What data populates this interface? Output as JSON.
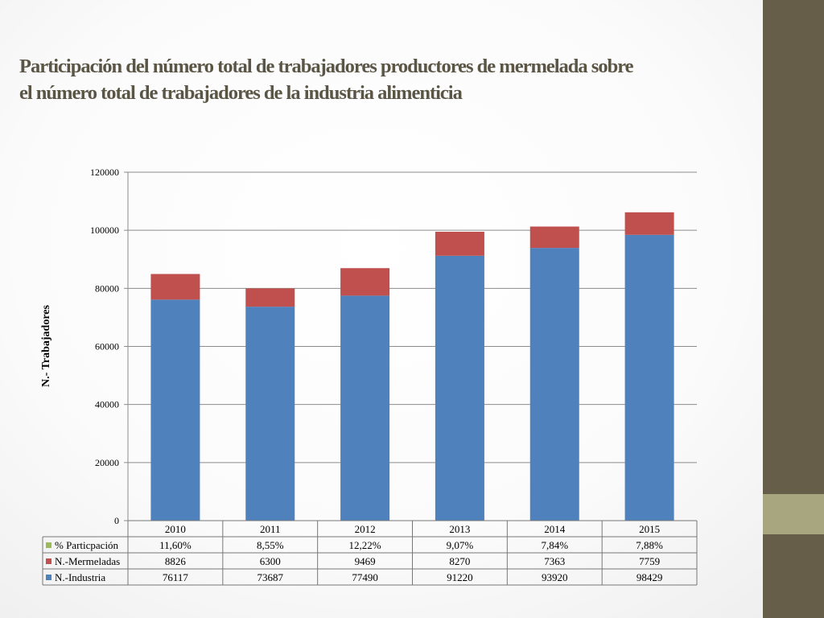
{
  "title_lines": [
    "Participación del número total de trabajadores productores de mermelada sobre",
    "el número total de trabajadores de la industria alimenticia"
  ],
  "chart_data": {
    "type": "bar",
    "stacked": true,
    "categories": [
      "2010",
      "2011",
      "2012",
      "2013",
      "2014",
      "2015"
    ],
    "series": [
      {
        "name": "% Particpación",
        "color": "#9bbb59",
        "values": [
          11.6,
          8.55,
          12.22,
          9.07,
          7.84,
          7.88
        ],
        "labels": [
          "11,60%",
          "8,55%",
          "12,22%",
          "9,07%",
          "7,84%",
          "7,88%"
        ],
        "plotted": false
      },
      {
        "name": "N.-Mermeladas",
        "color": "#c0504d",
        "values": [
          8826,
          6300,
          9469,
          8270,
          7363,
          7759
        ],
        "labels": [
          "8826",
          "6300",
          "9469",
          "8270",
          "7363",
          "7759"
        ],
        "plotted": true
      },
      {
        "name": "N.-Industria",
        "color": "#4f81bd",
        "values": [
          76117,
          73687,
          77490,
          91220,
          93920,
          98429
        ],
        "labels": [
          "76117",
          "73687",
          "77490",
          "91220",
          "93920",
          "98429"
        ],
        "plotted": true
      }
    ],
    "stack_order": [
      "N.-Industria",
      "N.-Mermeladas"
    ],
    "ylabel": "N.- Trabajadores",
    "xlabel": "",
    "ylim": [
      0,
      120000
    ],
    "yticks": [
      "0",
      "20000",
      "40000",
      "60000",
      "80000",
      "100000",
      "120000"
    ],
    "grid": true,
    "legend": "data-table"
  }
}
